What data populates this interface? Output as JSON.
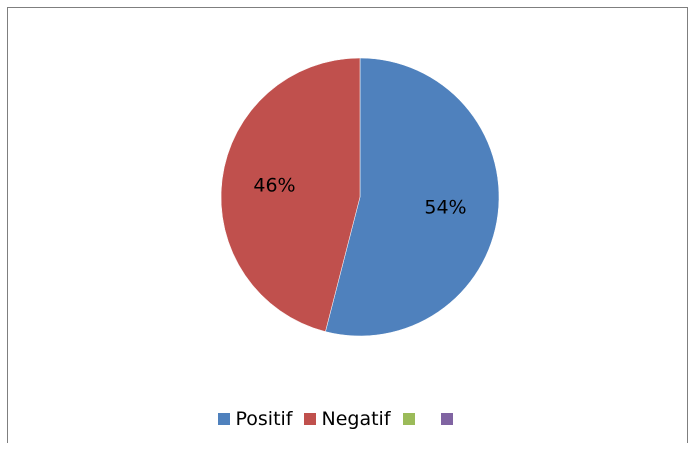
{
  "chart_data": {
    "type": "pie",
    "title": "",
    "slices": [
      {
        "label": "Positif",
        "value": 54,
        "display": "54%",
        "color": "#4f81bd"
      },
      {
        "label": "Negatif",
        "value": 46,
        "display": "46%",
        "color": "#c0504d"
      }
    ],
    "legend": {
      "placement": "bottom",
      "items": [
        {
          "label": "Positif",
          "color": "#4f81bd"
        },
        {
          "label": "Negatif",
          "color": "#c0504d"
        },
        {
          "label": "",
          "color": "#9bbb59"
        },
        {
          "label": "",
          "color": "#8064a2"
        }
      ]
    }
  }
}
